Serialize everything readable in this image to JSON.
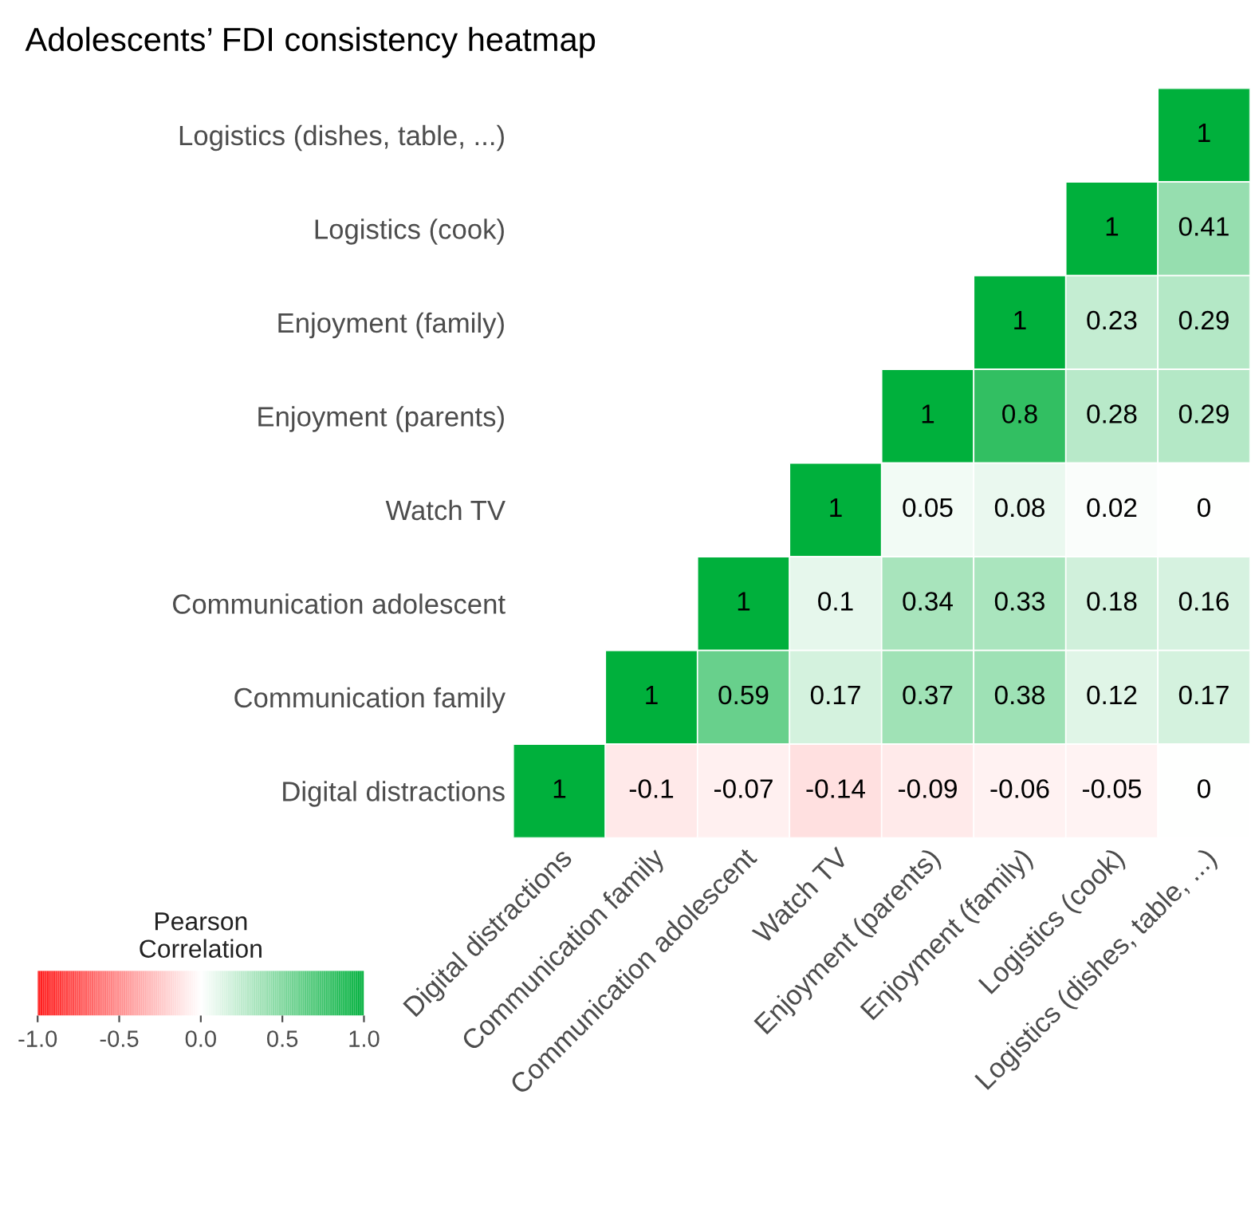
{
  "chart_data": {
    "type": "heatmap",
    "title": "Adolescents’ FDI consistency heatmap",
    "categories": [
      "Digital distractions",
      "Communication family",
      "Communication adolescent",
      "Watch TV",
      "Enjoyment (parents)",
      "Enjoyment (family)",
      "Logistics (cook)",
      "Logistics (dishes, table, ...)"
    ],
    "y_categories": [
      "Logistics (dishes, table, ...)",
      "Logistics (cook)",
      "Enjoyment (family)",
      "Enjoyment (parents)",
      "Watch TV",
      "Communication adolescent",
      "Communication family",
      "Digital distractions"
    ],
    "cells": [
      [
        null,
        null,
        null,
        null,
        null,
        null,
        null,
        1
      ],
      [
        null,
        null,
        null,
        null,
        null,
        null,
        1,
        0.41
      ],
      [
        null,
        null,
        null,
        null,
        null,
        1,
        0.23,
        0.29
      ],
      [
        null,
        null,
        null,
        null,
        1,
        0.8,
        0.28,
        0.29
      ],
      [
        null,
        null,
        null,
        1,
        0.05,
        0.08,
        0.02,
        0
      ],
      [
        null,
        null,
        1,
        0.1,
        0.34,
        0.33,
        0.18,
        0.16
      ],
      [
        null,
        1,
        0.59,
        0.17,
        0.37,
        0.38,
        0.12,
        0.17
      ],
      [
        1,
        -0.1,
        -0.07,
        -0.14,
        -0.09,
        -0.06,
        -0.05,
        0
      ]
    ],
    "clabel": "Pearson\nCorrelation",
    "clim": [
      -1,
      1
    ],
    "cticks": [
      {
        "value": -1,
        "label": "-1.0"
      },
      {
        "value": -0.5,
        "label": "-0.5"
      },
      {
        "value": 0,
        "label": "0.0"
      },
      {
        "value": 0.5,
        "label": "0.5"
      },
      {
        "value": 1,
        "label": "1.0"
      }
    ],
    "data_labels": true
  }
}
